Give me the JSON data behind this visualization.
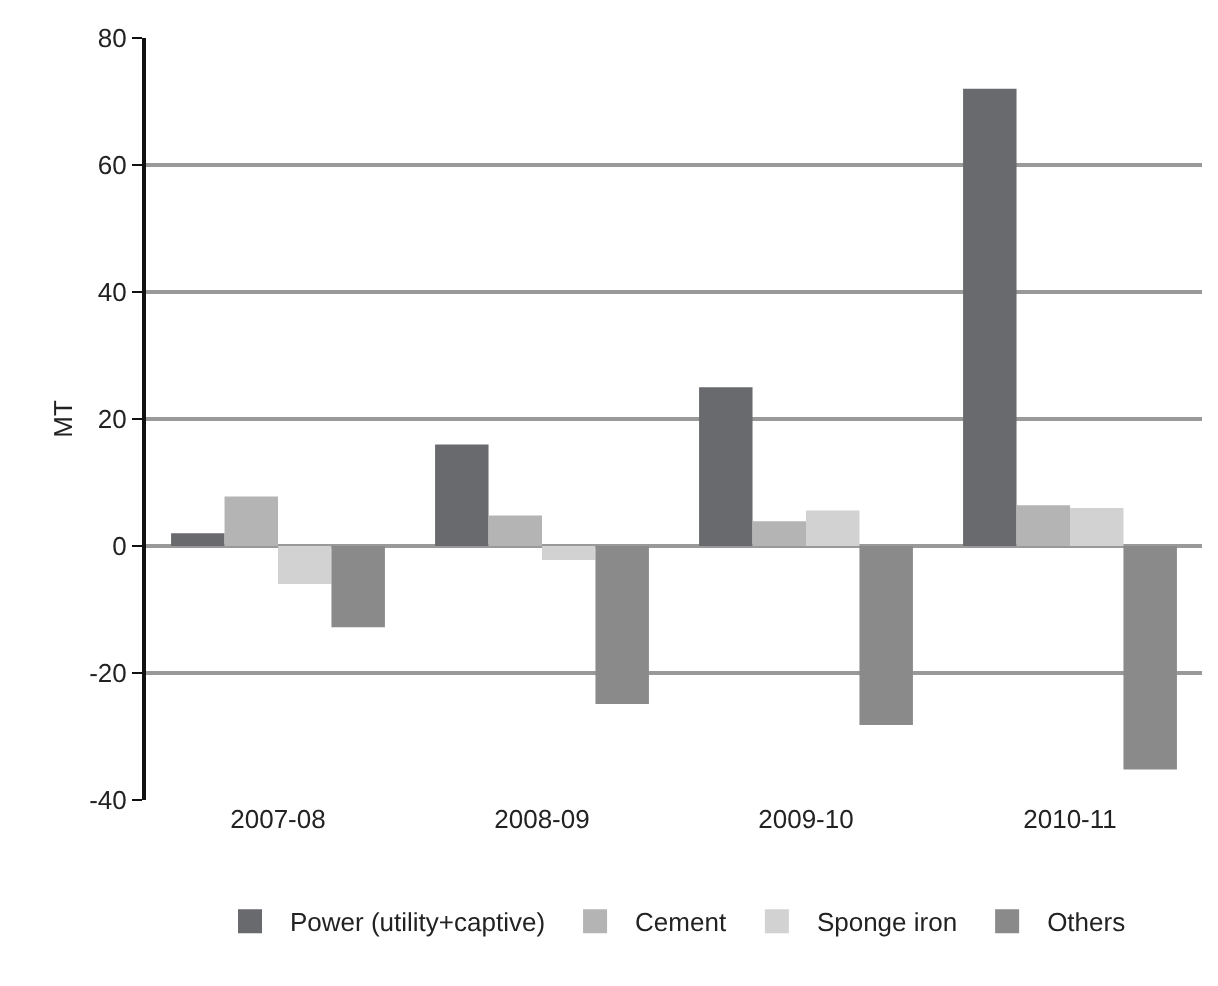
{
  "chart_data": {
    "type": "bar",
    "ylabel": "MT",
    "categories": [
      "2007-08",
      "2008-09",
      "2009-10",
      "2010-11"
    ],
    "series": [
      {
        "name": "Power (utility+captive)",
        "color": "#696a6e",
        "values": [
          2,
          16,
          25,
          72
        ]
      },
      {
        "name": "Cement",
        "color": "#b4b4b4",
        "values": [
          7.8,
          4.8,
          3.9,
          6.4
        ]
      },
      {
        "name": "Sponge iron",
        "color": "#d2d2d2",
        "values": [
          -6,
          -2.2,
          5.6,
          6
        ]
      },
      {
        "name": "Others",
        "color": "#8a8a8a",
        "values": [
          -12.8,
          -24.9,
          -28.2,
          -35.2
        ]
      }
    ],
    "ylim": [
      -40,
      80
    ],
    "yticks": [
      -40,
      -20,
      0,
      20,
      40,
      60,
      80
    ],
    "grid": "y",
    "legend": "bottom"
  }
}
